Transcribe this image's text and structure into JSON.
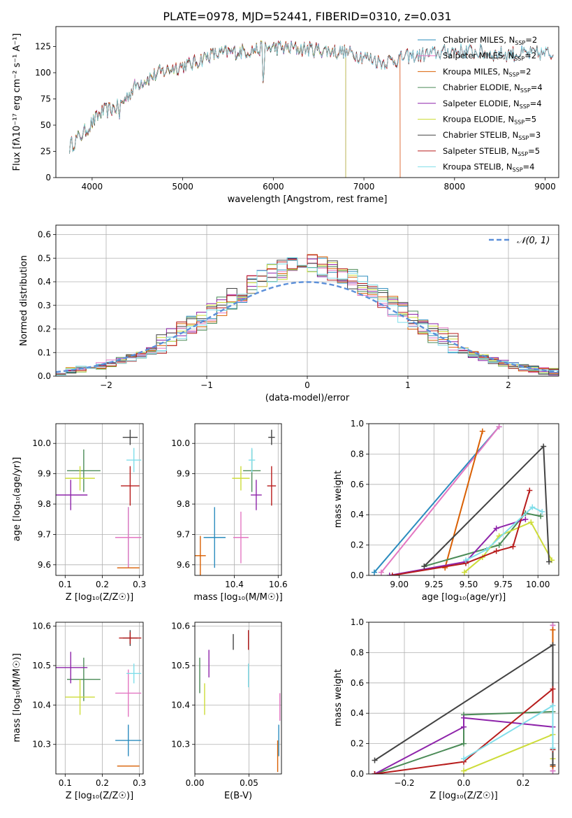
{
  "figure_title": "PLATE=0978, MJD=52441, FIBERID=0310, z=0.031",
  "colors": {
    "Chabrier MILES": "#2b8cbe",
    "Salpeter MILES": "#e377c2",
    "Kroupa MILES": "#d95f02",
    "Chabrier ELODIE": "#4b8b57",
    "Salpeter ELODIE": "#8e24aa",
    "Kroupa ELODIE": "#cddc39",
    "Chabrier STELIB": "#424242",
    "Salpeter STELIB": "#b71c1c",
    "Kroupa STELIB": "#80deea",
    "gauss": "#5b8fd9"
  },
  "chart_data": [
    {
      "id": "spectrum",
      "type": "line",
      "title": "PLATE=0978, MJD=52441, FIBERID=0310, z=0.031",
      "xlabel": "wavelength [Angstrom, rest frame]",
      "ylabel": "Flux [fλ10⁻¹⁷ erg cm⁻² s⁻¹ A⁻¹]",
      "xlim": [
        3600,
        9150
      ],
      "ylim": [
        0,
        144
      ],
      "xticks": [
        4000,
        5000,
        6000,
        7000,
        8000,
        9000
      ],
      "yticks": [
        0,
        25,
        50,
        75,
        100,
        125
      ],
      "legend_position": "right",
      "series": [
        {
          "name": "Chabrier MILES, N_SSP=2",
          "base": "Chabrier MILES",
          "x_end": 9100
        },
        {
          "name": "Salpeter MILES, N_SSP=2",
          "base": "Salpeter MILES",
          "x_end": 7400
        },
        {
          "name": "Kroupa MILES, N_SSP=2",
          "base": "Kroupa MILES",
          "x_end": 7400
        },
        {
          "name": "Chabrier ELODIE, N_SSP=4",
          "base": "Chabrier ELODIE",
          "x_end": 6800
        },
        {
          "name": "Salpeter ELODIE, N_SSP=4",
          "base": "Salpeter ELODIE",
          "x_end": 6800
        },
        {
          "name": "Kroupa ELODIE, N_SSP=5",
          "base": "Kroupa ELODIE",
          "x_end": 6800
        },
        {
          "name": "Chabrier STELIB, N_SSP=3",
          "base": "Chabrier STELIB",
          "x_end": 9100
        },
        {
          "name": "Salpeter STELIB, N_SSP=5",
          "base": "Salpeter STELIB",
          "x_end": 9100
        },
        {
          "name": "Kroupa STELIB, N_SSP=4",
          "base": "Kroupa STELIB",
          "x_end": 9100
        }
      ],
      "continuum": [
        [
          3750,
          30
        ],
        [
          3900,
          42
        ],
        [
          4100,
          62
        ],
        [
          4300,
          68
        ],
        [
          4500,
          90
        ],
        [
          4700,
          98
        ],
        [
          4900,
          105
        ],
        [
          5100,
          108
        ],
        [
          5300,
          117
        ],
        [
          5600,
          120
        ],
        [
          6000,
          124
        ],
        [
          6500,
          122
        ],
        [
          6900,
          118
        ],
        [
          7200,
          110
        ],
        [
          7500,
          115
        ],
        [
          8000,
          121
        ],
        [
          8500,
          118
        ],
        [
          9100,
          118
        ]
      ]
    },
    {
      "id": "residuals",
      "type": "histogram",
      "xlabel": "(data-model)/error",
      "ylabel": "Normed distribution",
      "xlim": [
        -2.5,
        2.5
      ],
      "ylim": [
        0,
        0.64
      ],
      "xticks": [
        -2,
        -1,
        0,
        1,
        2
      ],
      "yticks": [
        0.0,
        0.1,
        0.2,
        0.3,
        0.4,
        0.5,
        0.6
      ],
      "legend": [
        "𝒩(0, 1)"
      ],
      "legend_position": "upper right",
      "grid": true,
      "bin_width": 0.1,
      "series": [
        {
          "base": "Chabrier MILES"
        },
        {
          "base": "Salpeter MILES"
        },
        {
          "base": "Kroupa MILES"
        },
        {
          "base": "Chabrier ELODIE"
        },
        {
          "base": "Salpeter ELODIE"
        },
        {
          "base": "Kroupa ELODIE"
        },
        {
          "base": "Chabrier STELIB"
        },
        {
          "base": "Salpeter STELIB"
        },
        {
          "base": "Kroupa STELIB"
        }
      ]
    },
    {
      "id": "age_vs_Z",
      "type": "errorbar",
      "xlabel": "Z [log₁₀(Z/Z☉)]",
      "ylabel": "age  [log₁₀(age/yr)]",
      "xlim": [
        0.075,
        0.31
      ],
      "ylim": [
        9.565,
        10.065
      ],
      "xticks": [
        0.1,
        0.2,
        0.3
      ],
      "yticks": [
        9.6,
        9.7,
        9.8,
        9.9,
        10.0
      ],
      "grid": true,
      "points": [
        {
          "base": "Chabrier MILES",
          "x": 0.27,
          "y": 9.69,
          "xerr": 0.035,
          "yerr": 0.1
        },
        {
          "base": "Salpeter MILES",
          "x": 0.27,
          "y": 9.69,
          "xerr": 0.035,
          "yerr": 0.1
        },
        {
          "base": "Kroupa MILES",
          "x": 0.27,
          "y": 9.59,
          "xerr": 0.03,
          "yerr": 0.0
        },
        {
          "base": "Chabrier ELODIE",
          "x": 0.15,
          "y": 9.91,
          "xerr": 0.045,
          "yerr": 0.07
        },
        {
          "base": "Salpeter ELODIE",
          "x": 0.115,
          "y": 9.83,
          "xerr": 0.045,
          "yerr": 0.05
        },
        {
          "base": "Kroupa ELODIE",
          "x": 0.14,
          "y": 9.885,
          "xerr": 0.04,
          "yerr": 0.04
        },
        {
          "base": "Chabrier STELIB",
          "x": 0.275,
          "y": 10.02,
          "xerr": 0.02,
          "yerr": 0.025
        },
        {
          "base": "Salpeter STELIB",
          "x": 0.275,
          "y": 9.86,
          "xerr": 0.025,
          "yerr": 0.065
        },
        {
          "base": "Kroupa STELIB",
          "x": 0.285,
          "y": 9.945,
          "xerr": 0.02,
          "yerr": 0.04
        }
      ]
    },
    {
      "id": "age_vs_mass",
      "type": "errorbar",
      "xlabel": "mass [log₁₀(M/M☉)]",
      "ylabel": "",
      "xlim": [
        10.22,
        10.615
      ],
      "ylim": [
        9.565,
        10.065
      ],
      "xticks": [
        10.4,
        10.6
      ],
      "yticks": [
        9.6,
        9.7,
        9.8,
        9.9,
        10.0
      ],
      "grid": true,
      "points": [
        {
          "base": "Chabrier MILES",
          "x": 10.31,
          "y": 9.69,
          "xerr": 0.05,
          "yerr": 0.1
        },
        {
          "base": "Salpeter MILES",
          "x": 10.43,
          "y": 9.69,
          "xerr": 0.035,
          "yerr": 0.085
        },
        {
          "base": "Kroupa MILES",
          "x": 10.245,
          "y": 9.63,
          "xerr": 0.025,
          "yerr": 0.065
        },
        {
          "base": "Chabrier ELODIE",
          "x": 10.48,
          "y": 9.91,
          "xerr": 0.04,
          "yerr": 0.07
        },
        {
          "base": "Salpeter ELODIE",
          "x": 10.5,
          "y": 9.83,
          "xerr": 0.025,
          "yerr": 0.05
        },
        {
          "base": "Kroupa ELODIE",
          "x": 10.43,
          "y": 9.885,
          "xerr": 0.04,
          "yerr": 0.04
        },
        {
          "base": "Chabrier STELIB",
          "x": 10.57,
          "y": 10.02,
          "xerr": 0.015,
          "yerr": 0.025
        },
        {
          "base": "Salpeter STELIB",
          "x": 10.57,
          "y": 9.86,
          "xerr": 0.02,
          "yerr": 0.065
        },
        {
          "base": "Kroupa STELIB",
          "x": 10.48,
          "y": 9.945,
          "xerr": 0.015,
          "yerr": 0.04
        }
      ]
    },
    {
      "id": "weight_vs_age",
      "type": "line",
      "xlabel": "age  [log₁₀(age/yr)]",
      "ylabel": "mass weight",
      "xlim": [
        8.78,
        10.15
      ],
      "ylim": [
        0,
        1
      ],
      "xticks": [
        9.0,
        9.25,
        9.5,
        9.75,
        10.0
      ],
      "yticks": [
        0.0,
        0.2,
        0.4,
        0.6,
        0.8,
        1.0
      ],
      "grid": true,
      "series": [
        {
          "base": "Chabrier MILES",
          "x": [
            8.82,
            9.72
          ],
          "y": [
            0.02,
            0.98
          ]
        },
        {
          "base": "Salpeter MILES",
          "x": [
            8.87,
            9.72
          ],
          "y": [
            0.02,
            0.98
          ]
        },
        {
          "base": "Kroupa MILES",
          "x": [
            9.33,
            9.6
          ],
          "y": [
            0.05,
            0.95
          ]
        },
        {
          "base": "Chabrier ELODIE",
          "x": [
            9.18,
            9.72,
            9.91,
            10.02
          ],
          "y": [
            0.06,
            0.2,
            0.41,
            0.39
          ]
        },
        {
          "base": "Salpeter ELODIE",
          "x": [
            8.93,
            9.48,
            9.7,
            9.91
          ],
          "y": [
            0.0,
            0.09,
            0.31,
            0.37
          ]
        },
        {
          "base": "Kroupa ELODIE",
          "x": [
            9.47,
            9.6,
            9.72,
            9.95,
            10.1
          ],
          "y": [
            0.02,
            0.12,
            0.26,
            0.35,
            0.1
          ]
        },
        {
          "base": "Chabrier STELIB",
          "x": [
            9.18,
            10.04,
            10.08
          ],
          "y": [
            0.06,
            0.85,
            0.09
          ]
        },
        {
          "base": "Salpeter STELIB",
          "x": [
            8.95,
            9.48,
            9.7,
            9.82,
            9.94
          ],
          "y": [
            0.0,
            0.08,
            0.16,
            0.19,
            0.56
          ]
        },
        {
          "base": "Kroupa STELIB",
          "x": [
            9.48,
            9.63,
            9.96,
            10.03
          ],
          "y": [
            0.1,
            0.17,
            0.45,
            0.42
          ]
        }
      ]
    },
    {
      "id": "mass_vs_Z",
      "type": "errorbar",
      "xlabel": "Z [log₁₀(Z/Z☉)]",
      "ylabel": "mass [log₁₀(M/M☉)]",
      "xlim": [
        0.075,
        0.31
      ],
      "ylim": [
        10.225,
        10.61
      ],
      "xticks": [
        0.1,
        0.2,
        0.3
      ],
      "yticks": [
        10.3,
        10.4,
        10.5,
        10.6
      ],
      "grid": true,
      "points": [
        {
          "base": "Chabrier MILES",
          "x": 0.27,
          "y": 10.31,
          "xerr": 0.035,
          "yerr": 0.04
        },
        {
          "base": "Salpeter MILES",
          "x": 0.27,
          "y": 10.43,
          "xerr": 0.035,
          "yerr": 0.06
        },
        {
          "base": "Kroupa MILES",
          "x": 0.27,
          "y": 10.245,
          "xerr": 0.03,
          "yerr": 0.0
        },
        {
          "base": "Chabrier ELODIE",
          "x": 0.15,
          "y": 10.465,
          "xerr": 0.045,
          "yerr": 0.055
        },
        {
          "base": "Salpeter ELODIE",
          "x": 0.115,
          "y": 10.495,
          "xerr": 0.045,
          "yerr": 0.04
        },
        {
          "base": "Kroupa ELODIE",
          "x": 0.14,
          "y": 10.42,
          "xerr": 0.04,
          "yerr": 0.045
        },
        {
          "base": "Chabrier STELIB",
          "x": 0.275,
          "y": 10.57,
          "xerr": 0.02,
          "yerr": 0.02
        },
        {
          "base": "Salpeter STELIB",
          "x": 0.275,
          "y": 10.57,
          "xerr": 0.03,
          "yerr": 0.015
        },
        {
          "base": "Kroupa STELIB",
          "x": 0.285,
          "y": 10.48,
          "xerr": 0.02,
          "yerr": 0.025
        }
      ]
    },
    {
      "id": "mass_vs_ebv",
      "type": "errorbar",
      "xlabel": "E(B-V)",
      "ylabel": "",
      "xlim": [
        0.0,
        0.08
      ],
      "ylim": [
        10.225,
        10.61
      ],
      "xticks": [
        0.0,
        0.05
      ],
      "yticks": [
        10.3,
        10.4,
        10.5,
        10.6
      ],
      "grid": true,
      "points": [
        {
          "base": "Chabrier MILES",
          "x": 0.0775,
          "y": 10.31,
          "xerr": 0.0,
          "yerr": 0.04
        },
        {
          "base": "Salpeter MILES",
          "x": 0.0785,
          "y": 10.395,
          "xerr": 0.0,
          "yerr": 0.035
        },
        {
          "base": "Kroupa MILES",
          "x": 0.0765,
          "y": 10.27,
          "xerr": 0.0,
          "yerr": 0.04
        },
        {
          "base": "Chabrier ELODIE",
          "x": 0.0045,
          "y": 10.475,
          "xerr": 0.0,
          "yerr": 0.045
        },
        {
          "base": "Salpeter ELODIE",
          "x": 0.013,
          "y": 10.505,
          "xerr": 0.0,
          "yerr": 0.035
        },
        {
          "base": "Kroupa ELODIE",
          "x": 0.009,
          "y": 10.415,
          "xerr": 0.0,
          "yerr": 0.04
        },
        {
          "base": "Chabrier STELIB",
          "x": 0.0355,
          "y": 10.56,
          "xerr": 0.0,
          "yerr": 0.02
        },
        {
          "base": "Salpeter STELIB",
          "x": 0.0495,
          "y": 10.565,
          "xerr": 0.0,
          "yerr": 0.025
        },
        {
          "base": "Kroupa STELIB",
          "x": 0.0495,
          "y": 10.475,
          "xerr": 0.0,
          "yerr": 0.03
        }
      ]
    },
    {
      "id": "weight_vs_Z",
      "type": "line",
      "xlabel": "Z [log₁₀(Z/Z☉)]",
      "ylabel": "mass weight",
      "xlim": [
        -0.32,
        0.32
      ],
      "ylim": [
        0,
        1
      ],
      "xticks": [
        -0.2,
        0.0,
        0.2
      ],
      "yticks": [
        0.0,
        0.2,
        0.4,
        0.6,
        0.8,
        1.0
      ],
      "grid": true,
      "series": [
        {
          "base": "Chabrier MILES",
          "x": [
            0.3,
            0.3
          ],
          "y": [
            0.02,
            0.98
          ]
        },
        {
          "base": "Salpeter MILES",
          "x": [
            0.3,
            0.3
          ],
          "y": [
            0.02,
            0.98
          ]
        },
        {
          "base": "Kroupa MILES",
          "x": [
            0.3,
            0.3
          ],
          "y": [
            0.05,
            0.95
          ]
        },
        {
          "base": "Chabrier ELODIE",
          "x": [
            -0.3,
            0.0,
            0.0,
            0.3
          ],
          "y": [
            0.0,
            0.2,
            0.39,
            0.41
          ]
        },
        {
          "base": "Salpeter ELODIE",
          "x": [
            -0.3,
            0.0,
            0.0,
            0.3
          ],
          "y": [
            0.0,
            0.31,
            0.37,
            0.31
          ]
        },
        {
          "base": "Kroupa ELODIE",
          "x": [
            0.0,
            0.3,
            0.3
          ],
          "y": [
            0.02,
            0.26,
            0.1
          ]
        },
        {
          "base": "Chabrier STELIB",
          "x": [
            -0.3,
            0.3,
            0.3
          ],
          "y": [
            0.09,
            0.85,
            0.06
          ]
        },
        {
          "base": "Salpeter STELIB",
          "x": [
            -0.3,
            0.0,
            0.3,
            0.3
          ],
          "y": [
            0.0,
            0.08,
            0.56,
            0.16
          ]
        },
        {
          "base": "Kroupa STELIB",
          "x": [
            0.0,
            0.3,
            0.3
          ],
          "y": [
            0.1,
            0.45,
            0.17
          ]
        }
      ]
    }
  ]
}
